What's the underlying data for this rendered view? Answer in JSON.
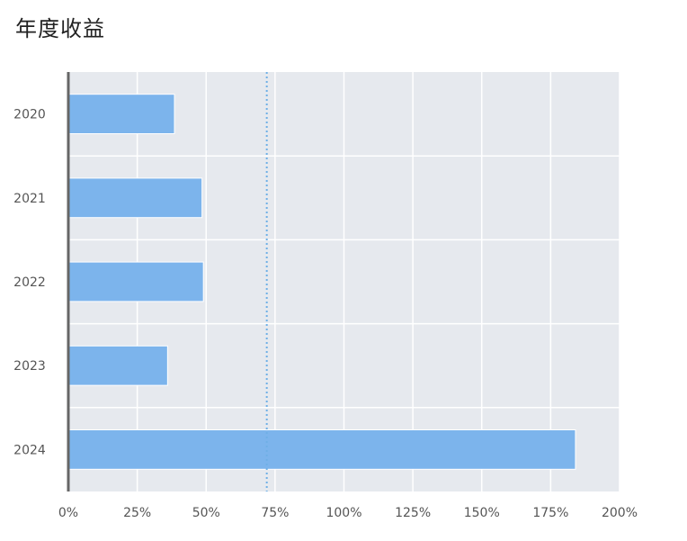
{
  "title": "年度收益",
  "chart_data": {
    "type": "bar",
    "orientation": "horizontal",
    "title": "年度收益",
    "categories": [
      "2020",
      "2021",
      "2022",
      "2023",
      "2024"
    ],
    "values": [
      38.5,
      48.5,
      49.0,
      36.0,
      184.0
    ],
    "value_unit": "%",
    "xlim": [
      0,
      200
    ],
    "x_ticks": [
      "0%",
      "25%",
      "50%",
      "75%",
      "100%",
      "125%",
      "150%",
      "175%",
      "200%"
    ],
    "reference_line": {
      "value": 72,
      "style": "dotted"
    },
    "grid": true,
    "colors": {
      "bar": "#7cb4ec",
      "plot_bg": "#e6e9ee",
      "grid": "#ffffff",
      "ref_line": "#6fb0e6",
      "axis": "#666666"
    }
  }
}
